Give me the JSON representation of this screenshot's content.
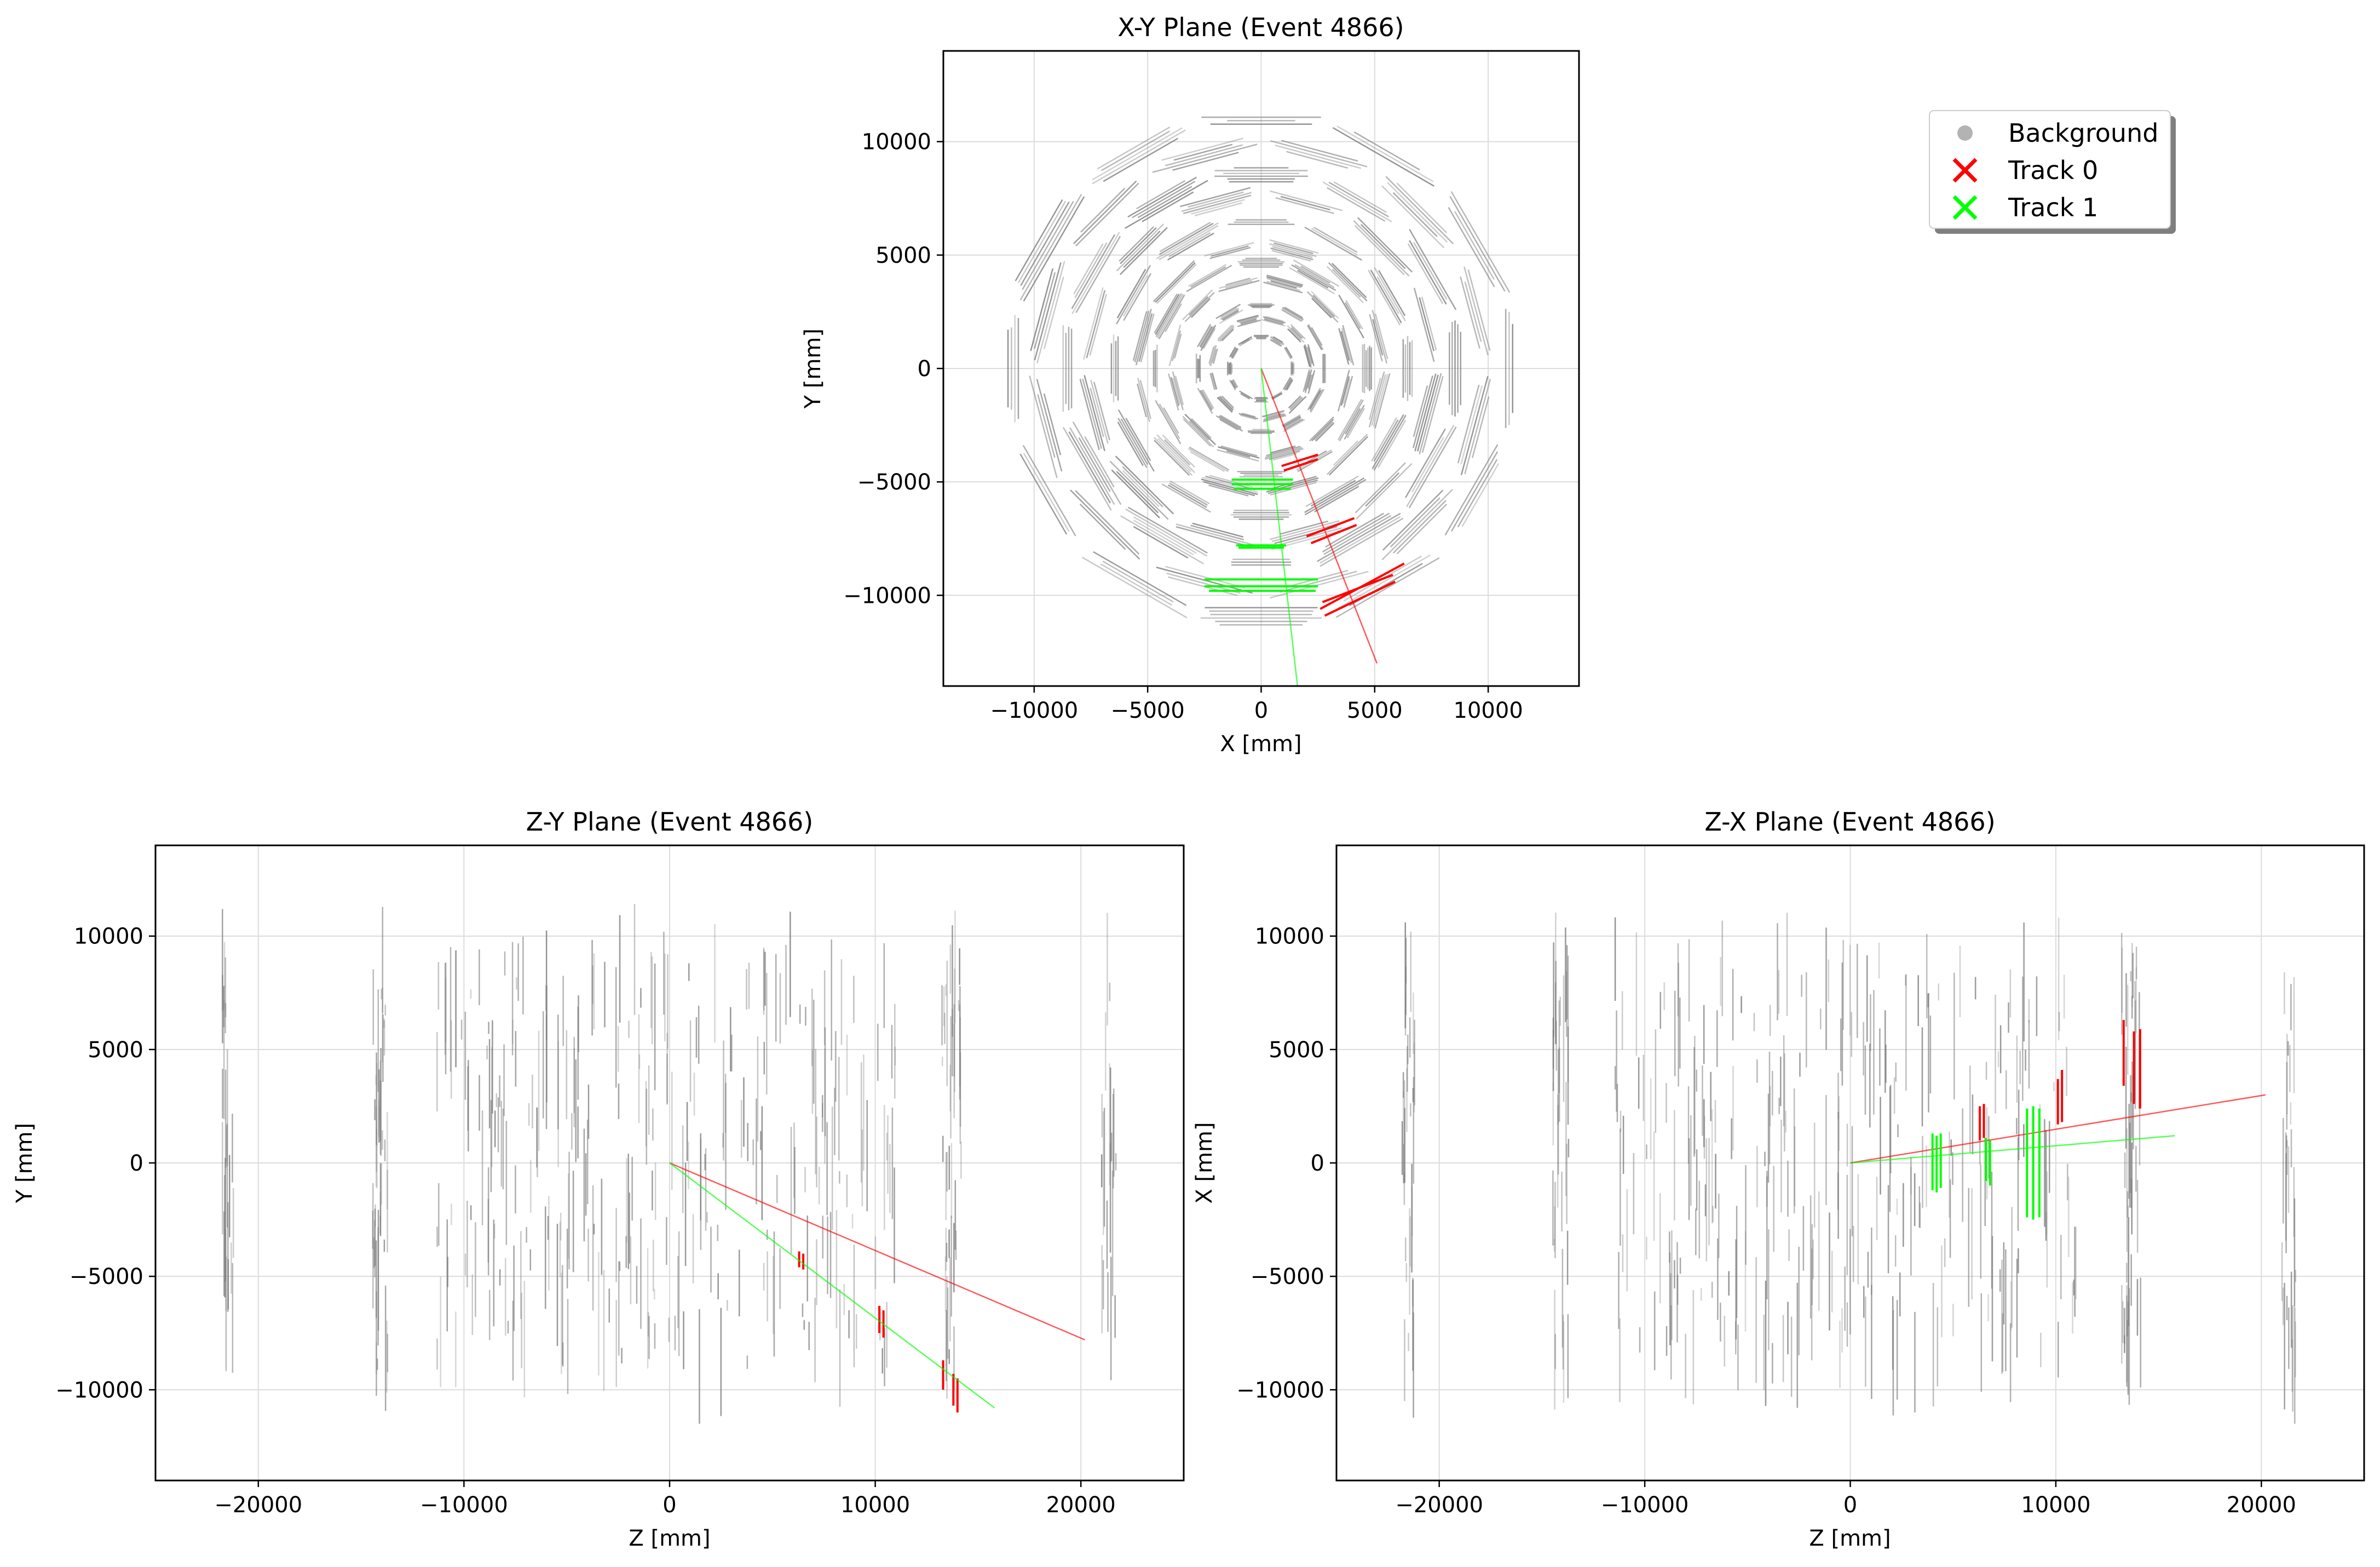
{
  "colors": {
    "background": "#808080",
    "track0": "#ff0000",
    "track1": "#00ff00",
    "grid": "#dcdcdc",
    "legend_background_marker": "#b3b3b3"
  },
  "legend": {
    "placement": "top-right",
    "entries": [
      {
        "label": "Background",
        "marker": "circle",
        "color": "#b3b3b3"
      },
      {
        "label": "Track 0",
        "marker": "x",
        "color": "#ff0000"
      },
      {
        "label": "Track 1",
        "marker": "x",
        "color": "#00ff00"
      }
    ]
  },
  "chart_data": [
    {
      "id": "xy",
      "type": "line",
      "title": "X-Y Plane (Event 4866)",
      "xlabel": "X [mm]",
      "ylabel": "Y [mm]",
      "xlim": [
        -14000,
        14000
      ],
      "ylim": [
        -14000,
        14000
      ],
      "xticks": [
        -10000,
        -5000,
        0,
        5000,
        10000
      ],
      "yticks": [
        -10000,
        -5000,
        0,
        5000,
        10000
      ],
      "xtick_labels": [
        "−10000",
        "−5000",
        "0",
        "5000",
        "10000"
      ],
      "ytick_labels": [
        "−10000",
        "−5000",
        "0",
        "5000",
        "10000"
      ],
      "grid": true,
      "tracks": [
        {
          "name": "Track 0",
          "line": [
            [
              0,
              0
            ],
            [
              5100,
              -13000
            ]
          ]
        },
        {
          "name": "Track 1",
          "line": [
            [
              0,
              0
            ],
            [
              1600,
              -14000
            ]
          ]
        }
      ],
      "track_hits": {
        "Track 0": [
          [
            [
              900,
              -4300
            ],
            [
              2500,
              -3800
            ]
          ],
          [
            [
              1000,
              -4500
            ],
            [
              2500,
              -4000
            ]
          ],
          [
            [
              2000,
              -7400
            ],
            [
              4100,
              -6600
            ]
          ],
          [
            [
              2200,
              -7700
            ],
            [
              4200,
              -6900
            ]
          ],
          [
            [
              2800,
              -10900
            ],
            [
              5900,
              -9400
            ]
          ],
          [
            [
              2600,
              -10600
            ],
            [
              6300,
              -8600
            ]
          ],
          [
            [
              2700,
              -10300
            ],
            [
              5800,
              -9100
            ]
          ]
        ],
        "Track 1": [
          [
            [
              -1300,
              -4900
            ],
            [
              1400,
              -4900
            ]
          ],
          [
            [
              -1300,
              -5100
            ],
            [
              1400,
              -5100
            ]
          ],
          [
            [
              -1200,
              -5300
            ],
            [
              1300,
              -5300
            ]
          ],
          [
            [
              -1100,
              -7800
            ],
            [
              1100,
              -7800
            ]
          ],
          [
            [
              -1000,
              -7900
            ],
            [
              1000,
              -7900
            ]
          ],
          [
            [
              -2500,
              -9300
            ],
            [
              2500,
              -9300
            ]
          ],
          [
            [
              -2500,
              -9600
            ],
            [
              2500,
              -9600
            ]
          ],
          [
            [
              -2300,
              -9800
            ],
            [
              2400,
              -9800
            ]
          ]
        ]
      }
    },
    {
      "id": "zy",
      "type": "line",
      "title": "Z-Y Plane (Event 4866)",
      "xlabel": "Z [mm]",
      "ylabel": "Y [mm]",
      "xlim": [
        -25000,
        25000
      ],
      "ylim": [
        -14000,
        14000
      ],
      "xticks": [
        -20000,
        -10000,
        0,
        10000,
        20000
      ],
      "yticks": [
        -10000,
        -5000,
        0,
        5000,
        10000
      ],
      "xtick_labels": [
        "−20000",
        "−10000",
        "0",
        "10000",
        "20000"
      ],
      "ytick_labels": [
        "−10000",
        "−5000",
        "0",
        "5000",
        "10000"
      ],
      "grid": true,
      "tracks": [
        {
          "name": "Track 0",
          "line": [
            [
              0,
              0
            ],
            [
              20200,
              -7800
            ]
          ]
        },
        {
          "name": "Track 1",
          "line": [
            [
              0,
              0
            ],
            [
              15800,
              -10800
            ]
          ]
        }
      ],
      "track_hits": {
        "Track 0": [
          [
            [
              6300,
              -3900
            ],
            [
              6300,
              -4600
            ]
          ],
          [
            [
              6500,
              -4000
            ],
            [
              6500,
              -4700
            ]
          ],
          [
            [
              10200,
              -6300
            ],
            [
              10200,
              -7500
            ]
          ],
          [
            [
              10400,
              -6500
            ],
            [
              10400,
              -7700
            ]
          ],
          [
            [
              13300,
              -8700
            ],
            [
              13300,
              -10000
            ]
          ],
          [
            [
              13800,
              -9300
            ],
            [
              13800,
              -10700
            ]
          ],
          [
            [
              14000,
              -9500
            ],
            [
              14000,
              -11000
            ]
          ]
        ],
        "Track 1": []
      }
    },
    {
      "id": "zx",
      "type": "line",
      "title": "Z-X Plane (Event 4866)",
      "xlabel": "Z [mm]",
      "ylabel": "X [mm]",
      "xlim": [
        -25000,
        25000
      ],
      "ylim": [
        -14000,
        14000
      ],
      "xticks": [
        -20000,
        -10000,
        0,
        10000,
        20000
      ],
      "yticks": [
        -10000,
        -5000,
        0,
        5000,
        10000
      ],
      "xtick_labels": [
        "−20000",
        "−10000",
        "0",
        "10000",
        "20000"
      ],
      "ytick_labels": [
        "−10000",
        "−5000",
        "0",
        "5000",
        "10000"
      ],
      "grid": true,
      "tracks": [
        {
          "name": "Track 0",
          "line": [
            [
              0,
              0
            ],
            [
              20200,
              3000
            ]
          ]
        },
        {
          "name": "Track 1",
          "line": [
            [
              0,
              0
            ],
            [
              15800,
              1200
            ]
          ]
        }
      ],
      "track_hits": {
        "Track 0": [
          [
            [
              6300,
              1000
            ],
            [
              6300,
              2500
            ]
          ],
          [
            [
              6500,
              1100
            ],
            [
              6500,
              2600
            ]
          ],
          [
            [
              10100,
              1700
            ],
            [
              10100,
              3700
            ]
          ],
          [
            [
              10300,
              1800
            ],
            [
              10300,
              4100
            ]
          ],
          [
            [
              13300,
              3400
            ],
            [
              13300,
              6300
            ]
          ],
          [
            [
              13800,
              2600
            ],
            [
              13800,
              5800
            ]
          ],
          [
            [
              14100,
              2400
            ],
            [
              14100,
              5900
            ]
          ]
        ],
        "Track 1": [
          [
            [
              4000,
              -1200
            ],
            [
              4000,
              1300
            ]
          ],
          [
            [
              4200,
              -1300
            ],
            [
              4200,
              1200
            ]
          ],
          [
            [
              4400,
              -1100
            ],
            [
              4400,
              1300
            ]
          ],
          [
            [
              6600,
              -800
            ],
            [
              6600,
              1100
            ]
          ],
          [
            [
              6800,
              -1000
            ],
            [
              6800,
              1000
            ]
          ],
          [
            [
              8600,
              -2400
            ],
            [
              8600,
              2400
            ]
          ],
          [
            [
              8900,
              -2500
            ],
            [
              8900,
              2500
            ]
          ],
          [
            [
              9200,
              -2400
            ],
            [
              9200,
              2400
            ]
          ]
        ]
      }
    }
  ]
}
